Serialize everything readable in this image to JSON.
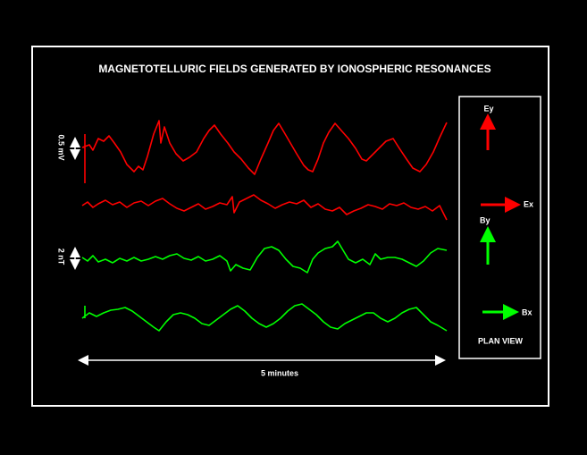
{
  "title": "MAGNETOTELLURIC  FIELDS GENERATED BY IONOSPHERIC RESONANCES",
  "scale_labels": {
    "electric": "0.5 mV",
    "magnetic": "2 nT"
  },
  "plan_view": {
    "ey": "Ey",
    "ex": "Ex",
    "by": "By",
    "bx": "Bx",
    "caption": "PLAN VIEW"
  },
  "time_label": "5 minutes"
}
